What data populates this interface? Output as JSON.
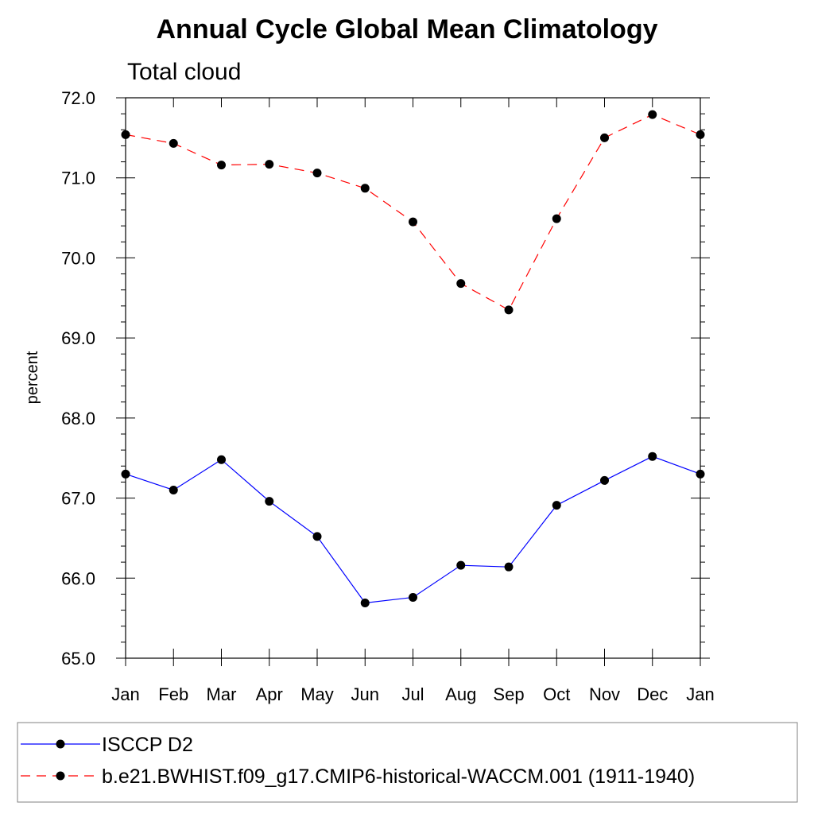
{
  "chart_data": {
    "type": "line",
    "title": "Annual Cycle Global Mean Climatology",
    "subtitle": "Total cloud",
    "ylabel": "percent",
    "xlabel": "",
    "categories": [
      "Jan",
      "Feb",
      "Mar",
      "Apr",
      "May",
      "Jun",
      "Jul",
      "Aug",
      "Sep",
      "Oct",
      "Nov",
      "Dec",
      "Jan"
    ],
    "ylim": [
      65.0,
      72.0
    ],
    "y_ticks": [
      "65.0",
      "66.0",
      "67.0",
      "68.0",
      "69.0",
      "70.0",
      "71.0",
      "72.0"
    ],
    "grid": false,
    "legend_position": "bottom",
    "series": [
      {
        "name": "ISCCP D2",
        "color": "#0000ff",
        "line_style": "solid",
        "marker": "filled-circle",
        "values": [
          67.3,
          67.1,
          67.48,
          66.96,
          66.52,
          65.69,
          65.76,
          66.16,
          66.14,
          66.91,
          67.22,
          67.52,
          67.3
        ]
      },
      {
        "name": "b.e21.BWHIST.f09_g17.CMIP6-historical-WACCM.001 (1911-1940)",
        "color": "#ff0000",
        "line_style": "dashed",
        "marker": "filled-circle",
        "values": [
          71.54,
          71.43,
          71.16,
          71.17,
          71.06,
          70.87,
          70.45,
          69.68,
          69.35,
          70.49,
          71.5,
          71.79,
          71.54
        ]
      }
    ]
  }
}
